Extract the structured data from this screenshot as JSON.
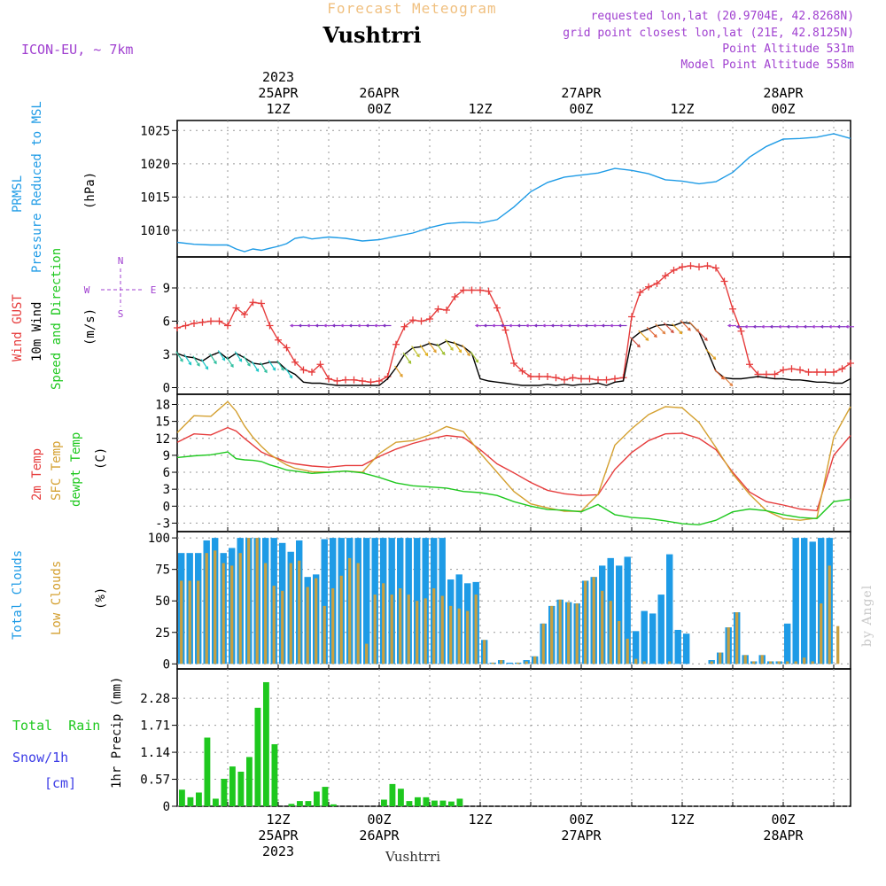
{
  "header": {
    "product": "Forecast Meteogram",
    "location": "Vushtrri",
    "model": "ICON-EU, ~ 7km",
    "requested": "requested lon,lat (20.9704E, 42.8268N)",
    "grid_point": "grid point closest lon,lat (21E, 42.8125N)",
    "point_altitude": "Point Altitude 531m",
    "model_altitude": "Model Point Altitude 558m",
    "footer_location": "Vushtrri",
    "credit": "by Angel"
  },
  "time_axis": {
    "top_labels": [
      {
        "h": 12,
        "lines": [
          "2023",
          "25APR",
          "12Z"
        ]
      },
      {
        "h": 24,
        "lines": [
          "26APR",
          "00Z"
        ]
      },
      {
        "h": 36,
        "lines": [
          "12Z"
        ]
      },
      {
        "h": 48,
        "lines": [
          "27APR",
          "00Z"
        ]
      },
      {
        "h": 60,
        "lines": [
          "12Z"
        ]
      },
      {
        "h": 72,
        "lines": [
          "28APR",
          "00Z"
        ]
      }
    ],
    "bottom_labels": [
      {
        "h": 12,
        "lines": [
          "12Z",
          "25APR",
          "2023"
        ]
      },
      {
        "h": 24,
        "lines": [
          "00Z",
          "26APR"
        ]
      },
      {
        "h": 36,
        "lines": [
          "12Z"
        ]
      },
      {
        "h": 48,
        "lines": [
          "00Z",
          "27APR"
        ]
      },
      {
        "h": 60,
        "lines": [
          "12Z"
        ]
      },
      {
        "h": 72,
        "lines": [
          "00Z",
          "28APR"
        ]
      }
    ],
    "grid_hours": [
      6,
      12,
      18,
      24,
      30,
      36,
      42,
      48,
      54,
      60,
      66,
      72,
      78
    ]
  },
  "colors": {
    "pressure": "#1e9be6",
    "gust": "#e63c3c",
    "wind": "#000000",
    "temp": "#e63c3c",
    "sfc": "#d4a030",
    "dewpt": "#1ec81e",
    "total_cloud": "#1e9be6",
    "low_cloud": "#c8a040",
    "rain": "#1ec81e",
    "snow": "#3c3ce6",
    "title_orange": "#f0c080",
    "purple": "#a040d0"
  },
  "panels": {
    "pressure": {
      "labels": [
        "PRMSL",
        "Pressure Reduced to MSL",
        "(hPa)"
      ]
    },
    "wind": {
      "labels": [
        "Wind GUST",
        "10m Wind",
        "Speed and Direction",
        "(m/s)"
      ],
      "compass": [
        "N",
        "S",
        "W",
        "E"
      ]
    },
    "temp": {
      "labels": [
        "2m Temp",
        "SFC Temp",
        "dewpt Temp",
        "(C)"
      ]
    },
    "clouds": {
      "labels": [
        "Total Clouds",
        "Low Clouds",
        "(%)"
      ]
    },
    "precip": {
      "labels": [
        "Total  Rain",
        "Snow/1h",
        "[cm]",
        "1hr Precip (mm)"
      ]
    }
  },
  "chart_data": [
    {
      "type": "line",
      "title": "PRMSL Pressure Reduced to MSL",
      "ylabel": "(hPa)",
      "ylim": [
        1006,
        1026.5
      ],
      "yticks": [
        1010,
        1015,
        1020,
        1025
      ],
      "x": [
        0,
        2,
        4,
        6,
        7,
        8,
        9,
        10,
        11,
        12,
        13,
        14,
        15,
        16,
        18,
        20,
        22,
        24,
        26,
        28,
        30,
        32,
        34,
        36,
        38,
        40,
        42,
        44,
        46,
        48,
        50,
        52,
        54,
        56,
        58,
        60,
        62,
        64,
        66,
        68,
        70,
        72,
        74,
        76,
        78,
        80
      ],
      "series": [
        {
          "name": "PRMSL",
          "values": [
            1008.2,
            1007.9,
            1007.8,
            1007.8,
            1007.2,
            1006.8,
            1007.2,
            1007.0,
            1007.3,
            1007.6,
            1008.0,
            1008.8,
            1009.0,
            1008.7,
            1009.0,
            1008.8,
            1008.4,
            1008.6,
            1009.1,
            1009.6,
            1010.4,
            1011.0,
            1011.2,
            1011.1,
            1011.6,
            1013.5,
            1015.8,
            1017.2,
            1018.0,
            1018.3,
            1018.6,
            1019.3,
            1019.0,
            1018.5,
            1017.6,
            1017.4,
            1017.0,
            1017.3,
            1018.7,
            1021.0,
            1022.6,
            1023.7,
            1023.8,
            1024.0,
            1024.5,
            1023.8
          ]
        }
      ]
    },
    {
      "type": "line",
      "title": "Wind GUST / 10m Wind Speed and Direction",
      "ylabel": "(m/s)",
      "ylim": [
        -0.6,
        11.8
      ],
      "yticks": [
        0,
        3,
        6,
        9
      ],
      "x": [
        0,
        1,
        2,
        3,
        4,
        5,
        6,
        7,
        8,
        9,
        10,
        11,
        12,
        13,
        14,
        15,
        16,
        17,
        18,
        19,
        20,
        21,
        22,
        23,
        24,
        25,
        26,
        27,
        28,
        29,
        30,
        31,
        32,
        33,
        34,
        35,
        36,
        37,
        38,
        39,
        40,
        41,
        42,
        43,
        44,
        45,
        46,
        47,
        48,
        49,
        50,
        51,
        52,
        53,
        54,
        55,
        56,
        57,
        58,
        59,
        60,
        61,
        62,
        63,
        64,
        65,
        66,
        67,
        68,
        69,
        70,
        71,
        72,
        73,
        74,
        75,
        76,
        77,
        78,
        79,
        80
      ],
      "series": [
        {
          "name": "Wind GUST",
          "values": [
            5.4,
            5.6,
            5.8,
            5.9,
            6.0,
            6.0,
            5.6,
            7.2,
            6.6,
            7.7,
            7.6,
            5.6,
            4.3,
            3.6,
            2.3,
            1.6,
            1.4,
            2.1,
            0.8,
            0.6,
            0.7,
            0.7,
            0.6,
            0.5,
            0.6,
            1.0,
            3.9,
            5.5,
            6.1,
            6.0,
            6.2,
            7.1,
            7.0,
            8.2,
            8.8,
            8.8,
            8.8,
            8.7,
            7.2,
            5.2,
            2.2,
            1.5,
            1.0,
            1.0,
            1.0,
            0.9,
            0.7,
            0.9,
            0.8,
            0.8,
            0.7,
            0.7,
            0.8,
            0.9,
            6.4,
            8.6,
            9.1,
            9.4,
            10.1,
            10.6,
            10.9,
            11.0,
            10.9,
            11.0,
            10.8,
            9.6,
            7.1,
            5.1,
            2.1,
            1.2,
            1.2,
            1.2,
            1.6,
            1.7,
            1.6,
            1.4,
            1.4,
            1.4,
            1.4,
            1.7,
            2.2
          ]
        },
        {
          "name": "10m Wind",
          "values": [
            3.1,
            2.8,
            2.7,
            2.4,
            2.9,
            3.2,
            2.6,
            3.1,
            2.7,
            2.2,
            2.1,
            2.3,
            2.3,
            1.6,
            1.2,
            0.5,
            0.4,
            0.4,
            0.3,
            0.2,
            0.2,
            0.2,
            0.2,
            0.2,
            0.2,
            0.8,
            1.8,
            3.0,
            3.6,
            3.7,
            4.0,
            3.8,
            4.2,
            4.0,
            3.7,
            3.1,
            0.8,
            0.6,
            0.5,
            0.4,
            0.3,
            0.2,
            0.2,
            0.2,
            0.3,
            0.2,
            0.3,
            0.2,
            0.3,
            0.3,
            0.4,
            0.2,
            0.5,
            0.6,
            4.4,
            5.0,
            5.3,
            5.6,
            5.7,
            5.6,
            5.9,
            5.8,
            5.0,
            3.3,
            1.5,
            0.9,
            0.8,
            0.8,
            0.9,
            1.0,
            0.9,
            0.8,
            0.8,
            0.7,
            0.7,
            0.6,
            0.5,
            0.5,
            0.4,
            0.4,
            0.8
          ]
        }
      ]
    },
    {
      "type": "line",
      "title": "2m Temp / SFC Temp / dewpt Temp",
      "ylabel": "(C)",
      "ylim": [
        -4.5,
        19.8
      ],
      "yticks": [
        -3,
        0,
        3,
        6,
        9,
        12,
        15,
        18
      ],
      "x": [
        0,
        2,
        4,
        6,
        7,
        8,
        9,
        10,
        11,
        12,
        13,
        14,
        16,
        18,
        20,
        22,
        24,
        26,
        28,
        30,
        32,
        34,
        36,
        38,
        40,
        42,
        44,
        46,
        48,
        50,
        52,
        54,
        56,
        58,
        60,
        62,
        64,
        66,
        68,
        70,
        72,
        74,
        76,
        78,
        80
      ],
      "series": [
        {
          "name": "2m Temp",
          "values": [
            11.3,
            12.8,
            12.6,
            13.9,
            13.3,
            12.0,
            10.8,
            9.6,
            8.9,
            8.4,
            7.8,
            7.5,
            7.1,
            6.9,
            7.2,
            7.2,
            8.8,
            10.1,
            11.1,
            11.9,
            12.5,
            12.2,
            10.0,
            7.5,
            5.9,
            4.2,
            2.8,
            2.2,
            1.9,
            2.0,
            6.5,
            9.5,
            11.6,
            12.8,
            12.9,
            12.0,
            10.0,
            6.0,
            2.5,
            0.8,
            0.2,
            -0.5,
            -0.8,
            9.0,
            12.5
          ]
        },
        {
          "name": "SFC Temp",
          "values": [
            13.0,
            16.0,
            15.9,
            18.5,
            16.8,
            14.2,
            12.2,
            10.6,
            9.2,
            8.2,
            7.3,
            6.7,
            6.1,
            6.0,
            6.2,
            6.0,
            9.3,
            11.3,
            11.6,
            12.6,
            14.1,
            13.2,
            9.4,
            6.0,
            2.6,
            0.4,
            -0.3,
            -0.9,
            -0.9,
            2.1,
            10.8,
            13.7,
            16.2,
            17.6,
            17.4,
            14.8,
            10.4,
            5.7,
            2.1,
            -0.8,
            -2.2,
            -2.5,
            -2.1,
            12.2,
            17.6
          ]
        },
        {
          "name": "dewpt Temp",
          "values": [
            8.6,
            8.9,
            9.1,
            9.6,
            8.4,
            8.2,
            8.1,
            7.9,
            7.3,
            6.9,
            6.4,
            6.2,
            5.8,
            6.0,
            6.2,
            5.9,
            5.1,
            4.1,
            3.6,
            3.4,
            3.2,
            2.6,
            2.4,
            1.9,
            0.8,
            0.0,
            -0.6,
            -0.7,
            -1.0,
            0.3,
            -1.5,
            -2.0,
            -2.2,
            -2.6,
            -3.1,
            -3.3,
            -2.5,
            -1.0,
            -0.5,
            -0.8,
            -1.5,
            -2.0,
            -2.2,
            0.8,
            1.2
          ]
        }
      ]
    },
    {
      "type": "bar",
      "title": "Total Clouds / Low Clouds",
      "ylabel": "(%)",
      "ylim": [
        -4,
        105
      ],
      "yticks": [
        0,
        25,
        50,
        75,
        100
      ],
      "x": [
        0,
        1,
        2,
        3,
        4,
        5,
        6,
        7,
        8,
        9,
        10,
        11,
        12,
        13,
        14,
        15,
        16,
        17,
        18,
        19,
        20,
        21,
        22,
        23,
        24,
        25,
        26,
        27,
        28,
        29,
        30,
        31,
        32,
        33,
        34,
        35,
        36,
        37,
        38,
        39,
        40,
        41,
        42,
        43,
        44,
        45,
        46,
        47,
        48,
        49,
        50,
        51,
        52,
        53,
        54,
        55,
        56,
        57,
        58,
        59,
        60,
        61,
        62,
        63,
        64,
        65,
        66,
        67,
        68,
        69,
        70,
        71,
        72,
        73,
        74,
        75,
        76,
        77,
        78,
        79,
        80
      ],
      "series": [
        {
          "name": "Total Clouds",
          "values": [
            88,
            88,
            88,
            98,
            100,
            88,
            92,
            100,
            100,
            100,
            100,
            100,
            96,
            89,
            98,
            69,
            71,
            99,
            100,
            100,
            100,
            100,
            100,
            100,
            100,
            100,
            100,
            100,
            100,
            100,
            100,
            100,
            67,
            71,
            64,
            65,
            19,
            1,
            3,
            1,
            1,
            3,
            6,
            32,
            46,
            51,
            49,
            48,
            66,
            69,
            78,
            84,
            78,
            85,
            26,
            42,
            40,
            55,
            87,
            27,
            24,
            0,
            0,
            3,
            9,
            29,
            41,
            7,
            2,
            7,
            2,
            2,
            32,
            100,
            100,
            97,
            100,
            100,
            0,
            0,
            0
          ]
        },
        {
          "name": "Low Clouds",
          "values": [
            66,
            66,
            66,
            88,
            90,
            80,
            78,
            88,
            100,
            100,
            80,
            62,
            58,
            80,
            82,
            61,
            68,
            46,
            60,
            70,
            84,
            80,
            16,
            55,
            64,
            55,
            60,
            55,
            50,
            52,
            60,
            54,
            46,
            44,
            42,
            55,
            19,
            1,
            3,
            0,
            1,
            2,
            6,
            32,
            46,
            51,
            49,
            48,
            66,
            69,
            58,
            50,
            34,
            20,
            4,
            2,
            0,
            0,
            2,
            0,
            0,
            0,
            0,
            2,
            9,
            29,
            41,
            7,
            2,
            7,
            2,
            2,
            2,
            2,
            5,
            2,
            48,
            78,
            30,
            0,
            0
          ]
        }
      ]
    },
    {
      "type": "bar",
      "title": "1hr Precip",
      "ylabel": "1hr Precip (mm)",
      "ylim": [
        0,
        2.9
      ],
      "yticks": [
        0,
        0.57,
        1.14,
        1.71,
        2.28
      ],
      "ytick_labels": [
        "0",
        "0.57",
        "1.14",
        "1.71",
        "2.28"
      ],
      "x": [
        0,
        1,
        2,
        3,
        4,
        5,
        6,
        7,
        8,
        9,
        10,
        11,
        12,
        13,
        14,
        15,
        16,
        17,
        18,
        19,
        20,
        21,
        22,
        23,
        24,
        25,
        26,
        27,
        28,
        29,
        30,
        31,
        32,
        33,
        34,
        35
      ],
      "series": [
        {
          "name": "Total Rain",
          "values": [
            0.35,
            0.19,
            0.29,
            1.45,
            0.16,
            0.58,
            0.84,
            0.73,
            1.04,
            2.08,
            2.62,
            1.31,
            0.0,
            0.05,
            0.11,
            0.11,
            0.31,
            0.41,
            0.04,
            0.0,
            0.0,
            0.0,
            0.0,
            0.0,
            0.14,
            0.47,
            0.37,
            0.11,
            0.19,
            0.19,
            0.12,
            0.12,
            0.1,
            0.16,
            0.0,
            0.0
          ]
        }
      ]
    }
  ]
}
